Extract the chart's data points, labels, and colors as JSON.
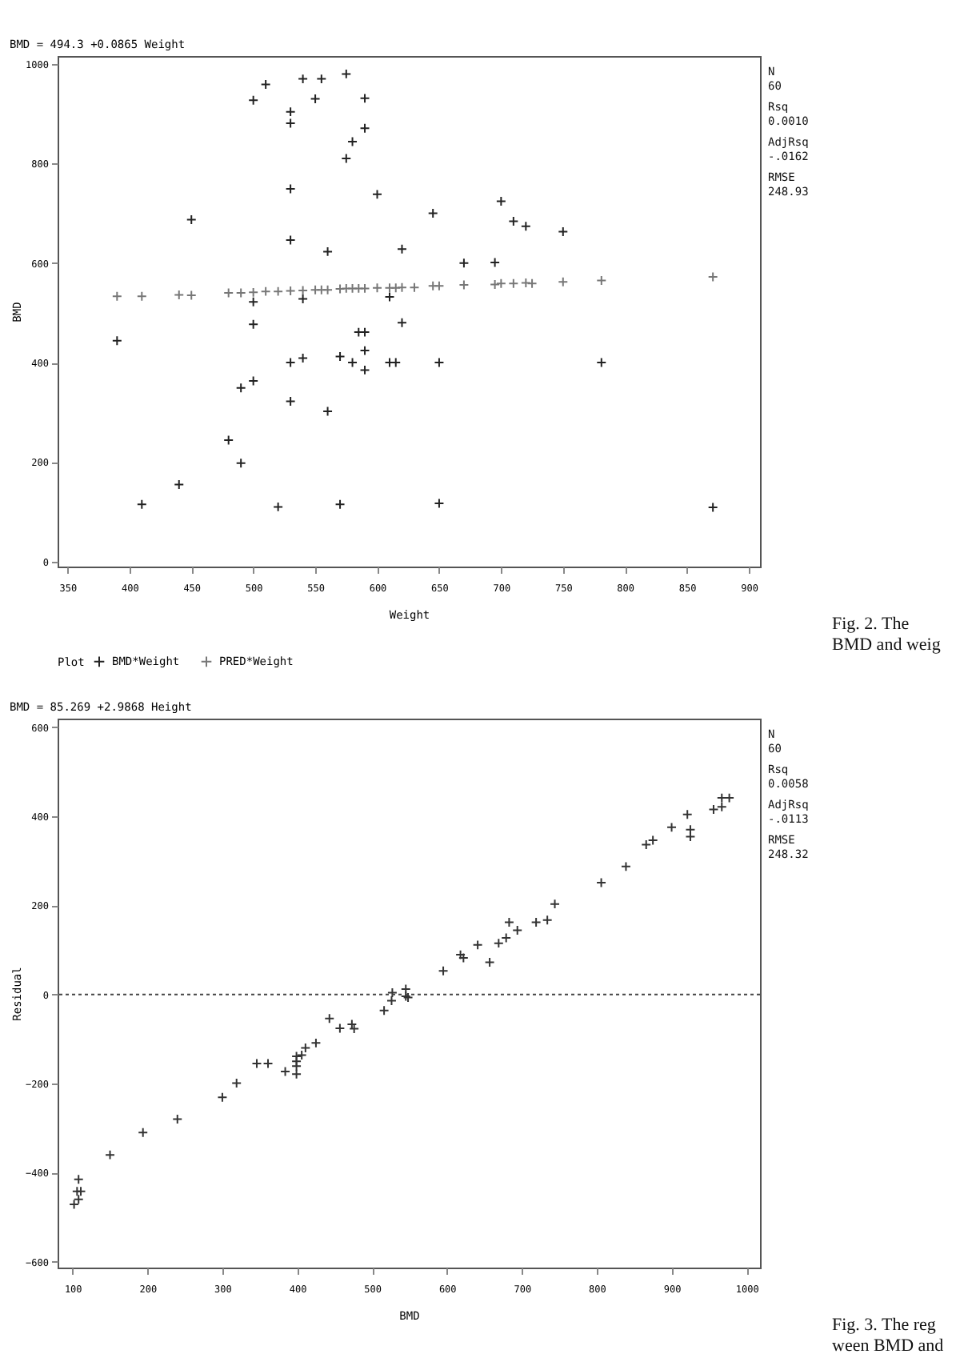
{
  "chart_data": [
    {
      "type": "scatter",
      "title": "BMD = 494.3 +0.0865 Weight",
      "xlabel": "Weight",
      "ylabel": "BMD",
      "legend_title": "Plot",
      "legend": "bottom",
      "marker": "cross",
      "xlim": [
        342,
        909
      ],
      "xticks": [
        350,
        400,
        450,
        500,
        550,
        600,
        650,
        700,
        750,
        800,
        850,
        900
      ],
      "ylim": [
        -10,
        1016
      ],
      "yticks": [
        0,
        200,
        400,
        600,
        800,
        1000
      ],
      "annotations": [
        "N",
        "60",
        "Rsq",
        "0.0010",
        "AdjRsq",
        "-.0162",
        "RMSE",
        "248.93",
        "Fig. 2. The",
        "BMD and weig"
      ],
      "series": [
        {
          "name": "BMD*Weight",
          "color": "#222222",
          "x": [
            500,
            510,
            540,
            555,
            575,
            550,
            590,
            530,
            530,
            590,
            580,
            575,
            530,
            600,
            450,
            645,
            700,
            710,
            720,
            750,
            530,
            560,
            620,
            670,
            695,
            500,
            540,
            610,
            500,
            620,
            585,
            590,
            390,
            590,
            530,
            540,
            570,
            580,
            590,
            610,
            615,
            650,
            781,
            500,
            490,
            530,
            560,
            480,
            490,
            440,
            410,
            520,
            570,
            650,
            871
          ],
          "values": [
            927,
            959,
            970,
            970,
            980,
            930,
            931,
            904,
            881,
            871,
            844,
            810,
            749,
            738,
            687,
            700,
            724,
            684,
            674,
            663,
            646,
            623,
            628,
            600,
            601,
            522,
            528,
            532,
            477,
            480,
            461,
            461,
            444,
            424,
            400,
            409,
            412,
            400,
            385,
            400,
            400,
            400,
            400,
            363,
            349,
            322,
            302,
            244,
            198,
            155,
            115,
            110,
            115,
            117,
            109
          ]
        },
        {
          "name": "PRED*Weight",
          "color": "#777777",
          "x": [
            390,
            410,
            440,
            450,
            480,
            490,
            500,
            510,
            520,
            530,
            540,
            550,
            555,
            560,
            570,
            575,
            580,
            585,
            590,
            600,
            610,
            615,
            620,
            630,
            645,
            650,
            670,
            695,
            700,
            710,
            720,
            725,
            750,
            781,
            871
          ],
          "values": [
            533,
            533,
            536,
            535,
            540,
            540,
            541,
            543,
            543,
            544,
            545,
            546,
            546,
            546,
            548,
            549,
            549,
            549,
            549,
            550,
            550,
            550,
            551,
            551,
            554,
            554,
            556,
            557,
            559,
            559,
            560,
            559,
            562,
            565,
            572
          ]
        }
      ]
    },
    {
      "type": "scatter",
      "title": "BMD = 85.269 +2.9868 Height",
      "xlabel": "BMD",
      "ylabel": "Residual",
      "marker": "cross",
      "xlim": [
        80,
        1018
      ],
      "xticks": [
        100,
        200,
        300,
        400,
        500,
        600,
        700,
        800,
        900,
        1000
      ],
      "ylim": [
        -613,
        619
      ],
      "yticks": [
        -600,
        -400,
        -200,
        0,
        200,
        400,
        600
      ],
      "ref_lines": [
        {
          "axis": "y",
          "value": 0,
          "line_style": "dotted",
          "color": "#444444"
        }
      ],
      "annotations": [
        "N",
        "60",
        "Rsq",
        "0.0058",
        "AdjRsq",
        "-.0113",
        "RMSE",
        "248.32",
        "Fig. 3. The reg",
        "ween BMD and"
      ],
      "series": [
        {
          "color": "#333333",
          "x": [
            967,
            977,
            967,
            956,
            921,
            925,
            925,
            900,
            875,
            866,
            839,
            806,
            744,
            734,
            719,
            694,
            683,
            679,
            669,
            657,
            641,
            622,
            618,
            595,
            527,
            526,
            545,
            545,
            548,
            516,
            443,
            457,
            473,
            476,
            425,
            411,
            406,
            399,
            399,
            399,
            399,
            384,
            361,
            346,
            319,
            300,
            240,
            194,
            150,
            108,
            106,
            111,
            108,
            102
          ],
          "values": [
            421,
            441,
            441,
            415,
            404,
            370,
            354,
            375,
            346,
            336,
            287,
            251,
            203,
            167,
            162,
            144,
            162,
            127,
            115,
            72,
            111,
            82,
            89,
            53,
            4,
            -14,
            12,
            -4,
            -7,
            -36,
            -54,
            -76,
            -67,
            -77,
            -109,
            -120,
            -136,
            -139,
            -150,
            -161,
            -179,
            -173,
            -155,
            -155,
            -199,
            -231,
            -280,
            -310,
            -360,
            -415,
            -442,
            -442,
            -460,
            -471
          ]
        }
      ]
    }
  ]
}
